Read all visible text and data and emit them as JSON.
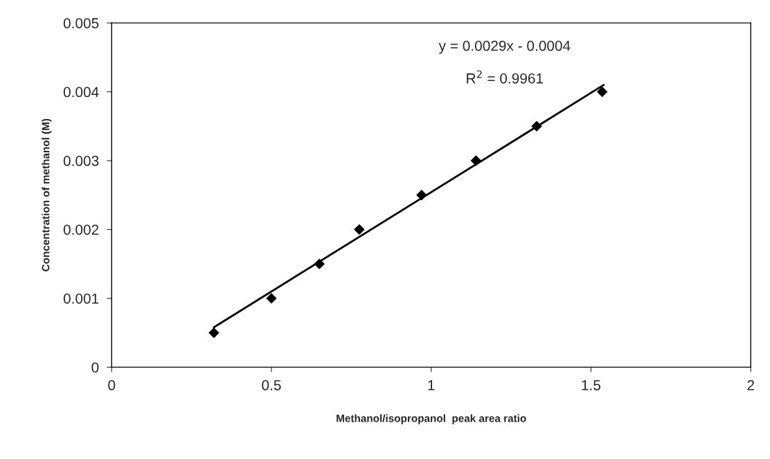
{
  "chart_data": {
    "type": "scatter",
    "xlabel": "Methanol/isopropanol  peak area ratio",
    "ylabel": "Concentration of methanol (M)",
    "series": [
      {
        "color": "#000000",
        "marker": "diamond",
        "x": [
          0.32,
          0.5,
          0.65,
          0.775,
          0.97,
          1.14,
          1.33,
          1.535
        ],
        "values": [
          0.0005,
          0.001,
          0.0015,
          0.002,
          0.0025,
          0.003,
          0.0035,
          0.004
        ]
      },
      {
        "type": "line",
        "color": "#000000",
        "marker": "none",
        "x": [
          0.32,
          1.54
        ],
        "values": [
          0.00058,
          0.0041
        ]
      }
    ],
    "annotations": [
      "y = 0.0029x - 0.0004",
      "R$^{2}$ = 0.9961"
    ],
    "xlim": [
      0,
      2
    ],
    "xticks": [
      0,
      0.5,
      1,
      1.5,
      2
    ],
    "ylim": [
      0,
      0.005
    ],
    "yticks": [
      0,
      0.001,
      0.002,
      0.003,
      0.004,
      0.005
    ],
    "grid": false,
    "legend": false
  }
}
